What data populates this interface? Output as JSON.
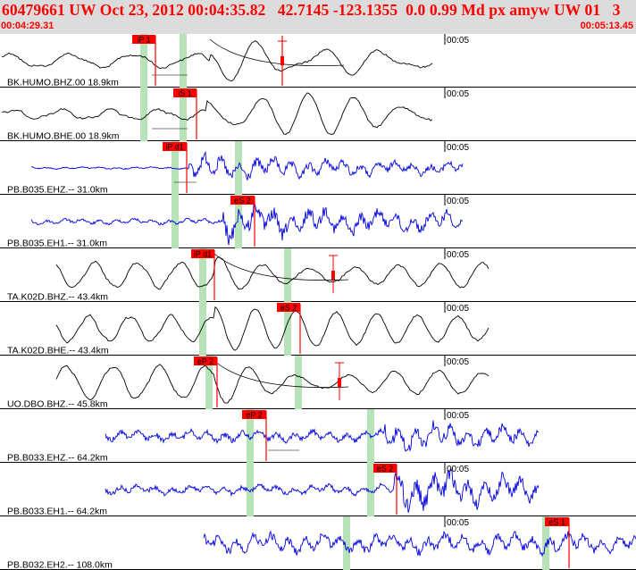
{
  "header": {
    "title": "60479661 UW Oct 23, 2012 00:04:35.82   42.7145 -123.1355  0.0 0.99 Md px amyw UW 01   3",
    "start_time": "00:04:29.31",
    "end_time": "00:05:13.45"
  },
  "colors": {
    "pick": "#ff0000",
    "pick_band": "#b8e3b8",
    "broadband": "#000000",
    "short_period": "#0000e0",
    "header_bg": "#dcdcdc",
    "header_text": "#ff0000"
  },
  "traces": [
    {
      "label": "BK.HUMO.BHZ.00 18.9km",
      "color": "black",
      "time_mark": "00:05",
      "picks": [
        {
          "label": "iP 1"
        }
      ]
    },
    {
      "label": "BK.HUMO.BHE.00 18.9km",
      "color": "black",
      "time_mark": "00:05",
      "picks": [
        {
          "label": "iS 1"
        }
      ]
    },
    {
      "label": "PB.B035.EHZ.-- 31.0km",
      "color": "blue",
      "time_mark": "00:05",
      "picks": [
        {
          "label": "iP d1"
        }
      ]
    },
    {
      "label": "PB.B035.EH1.-- 31.0km",
      "color": "blue",
      "time_mark": "00:05",
      "picks": [
        {
          "label": "eS 2"
        }
      ]
    },
    {
      "label": "TA.K02D.BHZ.-- 43.4km",
      "color": "black",
      "time_mark": "00:05",
      "picks": [
        {
          "label": "iP d1"
        }
      ]
    },
    {
      "label": "TA.K02D.BHE.-- 43.4km",
      "color": "black",
      "time_mark": "00:05",
      "picks": [
        {
          "label": "eS 2"
        }
      ]
    },
    {
      "label": "UO.DBO.BHZ.-- 45.8km",
      "color": "black",
      "time_mark": "00:05",
      "picks": [
        {
          "label": "eP 2"
        }
      ]
    },
    {
      "label": "PB.B033.EHZ.-- 64.2km",
      "color": "blue",
      "time_mark": "00:05",
      "picks": [
        {
          "label": "eP 2"
        }
      ]
    },
    {
      "label": "PB.B033.EH1.-- 64.2km",
      "color": "blue",
      "time_mark": "00:05",
      "picks": [
        {
          "label": "eS 2"
        }
      ]
    },
    {
      "label": "PB.B032.EH2.-- 108.0km",
      "color": "blue",
      "time_mark": "00:05",
      "picks": [
        {
          "label": "eS 1"
        }
      ]
    }
  ]
}
